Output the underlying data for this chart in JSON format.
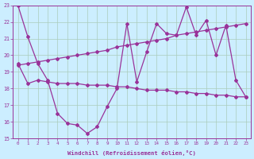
{
  "xlabel": "Windchill (Refroidissement éolien,°C)",
  "bg_color": "#cceeff",
  "line_color": "#993399",
  "grid_color": "#aaccbb",
  "xlim": [
    -0.5,
    23.5
  ],
  "ylim": [
    15,
    23
  ],
  "yticks": [
    15,
    16,
    17,
    18,
    19,
    20,
    21,
    22,
    23
  ],
  "xticks": [
    0,
    1,
    2,
    3,
    4,
    5,
    6,
    7,
    8,
    9,
    10,
    11,
    12,
    13,
    14,
    15,
    16,
    17,
    18,
    19,
    20,
    21,
    22,
    23
  ],
  "line1_x": [
    0,
    1,
    2,
    3,
    4,
    5,
    6,
    7,
    8,
    9,
    10,
    11,
    12,
    13,
    14,
    15,
    16,
    17,
    18,
    19,
    20,
    21,
    22,
    23
  ],
  "line1_y": [
    23.0,
    21.1,
    19.5,
    18.5,
    16.5,
    15.9,
    15.8,
    15.3,
    15.7,
    16.9,
    18.0,
    21.9,
    18.4,
    20.2,
    21.9,
    21.3,
    21.2,
    22.9,
    21.2,
    22.1,
    20.0,
    21.8,
    18.5,
    17.5
  ],
  "line2_x": [
    0,
    1,
    2,
    3,
    4,
    5,
    6,
    7,
    8,
    9,
    10,
    11,
    12,
    13,
    14,
    15,
    16,
    17,
    18,
    19,
    20,
    21,
    22,
    23
  ],
  "line2_y": [
    19.4,
    19.5,
    19.6,
    19.7,
    19.8,
    19.9,
    20.0,
    20.1,
    20.2,
    20.3,
    20.5,
    20.6,
    20.7,
    20.8,
    20.9,
    21.0,
    21.2,
    21.3,
    21.4,
    21.5,
    21.6,
    21.7,
    21.8,
    21.9
  ],
  "line3_x": [
    0,
    1,
    2,
    3,
    4,
    5,
    6,
    7,
    8,
    9,
    10,
    11,
    12,
    13,
    14,
    15,
    16,
    17,
    18,
    19,
    20,
    21,
    22,
    23
  ],
  "line3_y": [
    19.5,
    18.3,
    18.5,
    18.4,
    18.3,
    18.3,
    18.3,
    18.2,
    18.2,
    18.2,
    18.1,
    18.1,
    18.0,
    17.9,
    17.9,
    17.9,
    17.8,
    17.8,
    17.7,
    17.7,
    17.6,
    17.6,
    17.5,
    17.5
  ]
}
